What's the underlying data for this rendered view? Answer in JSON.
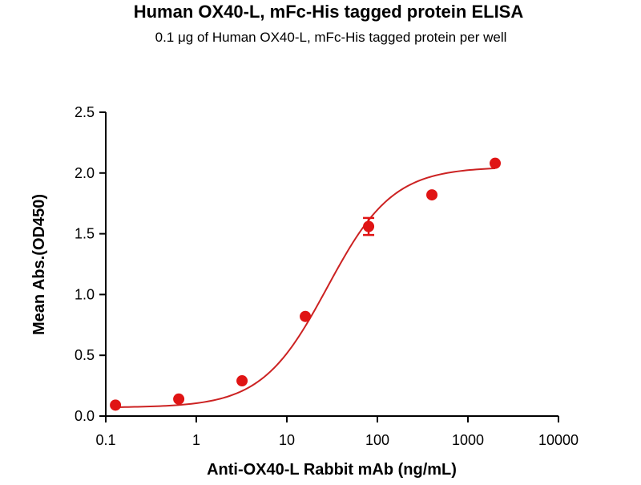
{
  "chart_data": {
    "type": "scatter",
    "title": "Human OX40-L, mFc-His tagged protein ELISA",
    "subtitle": "0.1 μg of Human OX40-L, mFc-His tagged protein per well",
    "xlabel": "Anti-OX40-L Rabbit mAb (ng/mL)",
    "ylabel": "Mean Abs.(OD450)",
    "xscale": "log",
    "xlim": [
      0.1,
      10000
    ],
    "ylim": [
      0,
      2.5
    ],
    "x_ticks": [
      0.1,
      1,
      10,
      100,
      1000,
      10000
    ],
    "x_tick_labels": [
      "0.1",
      "1",
      "10",
      "100",
      "1000",
      "10000"
    ],
    "y_ticks": [
      0.0,
      0.5,
      1.0,
      1.5,
      2.0,
      2.5
    ],
    "y_tick_labels": [
      "0.0",
      "0.5",
      "1.0",
      "1.5",
      "2.0",
      "2.5"
    ],
    "grid": false,
    "legend": "none",
    "marker_color": "#e01414",
    "curve_color": "#cc2222",
    "series": [
      {
        "x": [
          0.128,
          0.64,
          3.2,
          16,
          80,
          400,
          2000
        ],
        "y": [
          0.09,
          0.14,
          0.29,
          0.82,
          1.56,
          1.82,
          2.08
        ],
        "error": [
          0.01,
          0.01,
          0.01,
          0.02,
          0.07,
          0.01,
          0.01
        ]
      }
    ],
    "fit": {
      "model": "4PL",
      "bottom": 0.07,
      "top": 2.05,
      "ec50": 28,
      "hill": 1.2
    }
  }
}
